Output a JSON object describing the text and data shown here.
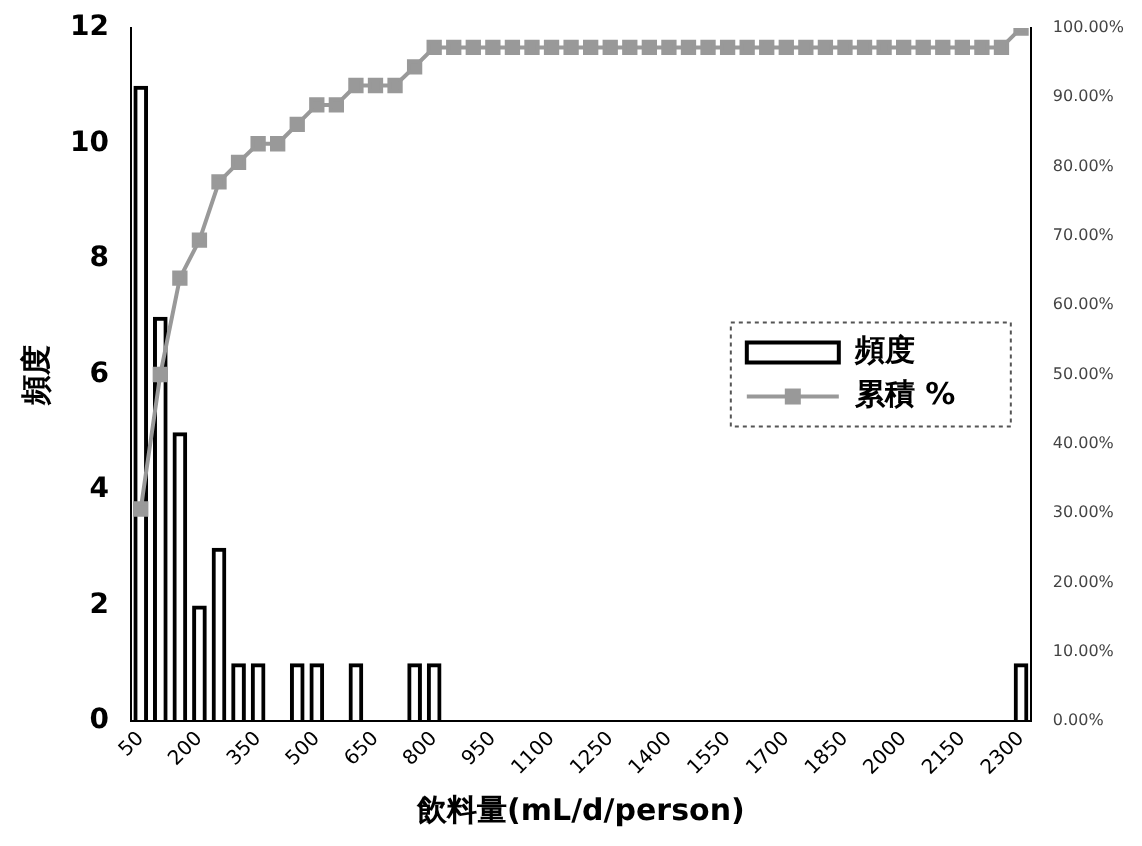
{
  "chart_data": {
    "type": "bar",
    "xlabel": "飲料量(mL/d/person)",
    "ylabel": "頻度",
    "categories": [
      "50",
      null,
      null,
      "200",
      null,
      null,
      "350",
      null,
      null,
      "500",
      null,
      null,
      "650",
      null,
      null,
      "800",
      null,
      null,
      "950",
      null,
      null,
      "1100",
      null,
      null,
      "1250",
      null,
      null,
      "1400",
      null,
      null,
      "1550",
      null,
      null,
      "1700",
      null,
      null,
      "1850",
      null,
      null,
      "2000",
      null,
      null,
      "2150",
      null,
      null,
      "2300"
    ],
    "series": [
      {
        "name": "頻度",
        "color": "#000000",
        "values": [
          11,
          7,
          5,
          2,
          3,
          1,
          1,
          0,
          1,
          1,
          0,
          1,
          0,
          0,
          1,
          1,
          0,
          0,
          0,
          0,
          0,
          0,
          0,
          0,
          0,
          0,
          0,
          0,
          0,
          0,
          0,
          0,
          0,
          0,
          0,
          0,
          0,
          0,
          0,
          0,
          0,
          0,
          0,
          0,
          0,
          1
        ]
      },
      {
        "name": "累積 %",
        "type": "line",
        "axis": "y2",
        "color": "#999999",
        "values": [
          30.6,
          50,
          63.9,
          69.4,
          77.8,
          80.6,
          83.3,
          83.3,
          86.1,
          88.9,
          88.9,
          91.7,
          91.7,
          91.7,
          94.4,
          97.2,
          97.2,
          97.2,
          97.2,
          97.2,
          97.2,
          97.2,
          97.2,
          97.2,
          97.2,
          97.2,
          97.2,
          97.2,
          97.2,
          97.2,
          97.2,
          97.2,
          97.2,
          97.2,
          97.2,
          97.2,
          97.2,
          97.2,
          97.2,
          97.2,
          97.2,
          97.2,
          97.2,
          97.2,
          97.2,
          100
        ]
      }
    ],
    "ylim": [
      0,
      12
    ],
    "yticks": [
      0,
      2,
      4,
      6,
      8,
      10,
      12
    ],
    "y2lim": [
      0,
      100
    ],
    "y2ticks": [
      {
        "value": 0,
        "label": "0.00%"
      },
      {
        "value": 10,
        "label": "10.00%"
      },
      {
        "value": 20,
        "label": "20.00%"
      },
      {
        "value": 30,
        "label": "30.00%"
      },
      {
        "value": 40,
        "label": "40.00%"
      },
      {
        "value": 50,
        "label": "50.00%"
      },
      {
        "value": 60,
        "label": "60.00%"
      },
      {
        "value": 70,
        "label": "70.00%"
      },
      {
        "value": 80,
        "label": "80.00%"
      },
      {
        "value": 90,
        "label": "90.00%"
      },
      {
        "value": 100,
        "label": "100.00%"
      }
    ],
    "grid": false,
    "legend": "right",
    "marker": "square",
    "line_style": "solid"
  }
}
